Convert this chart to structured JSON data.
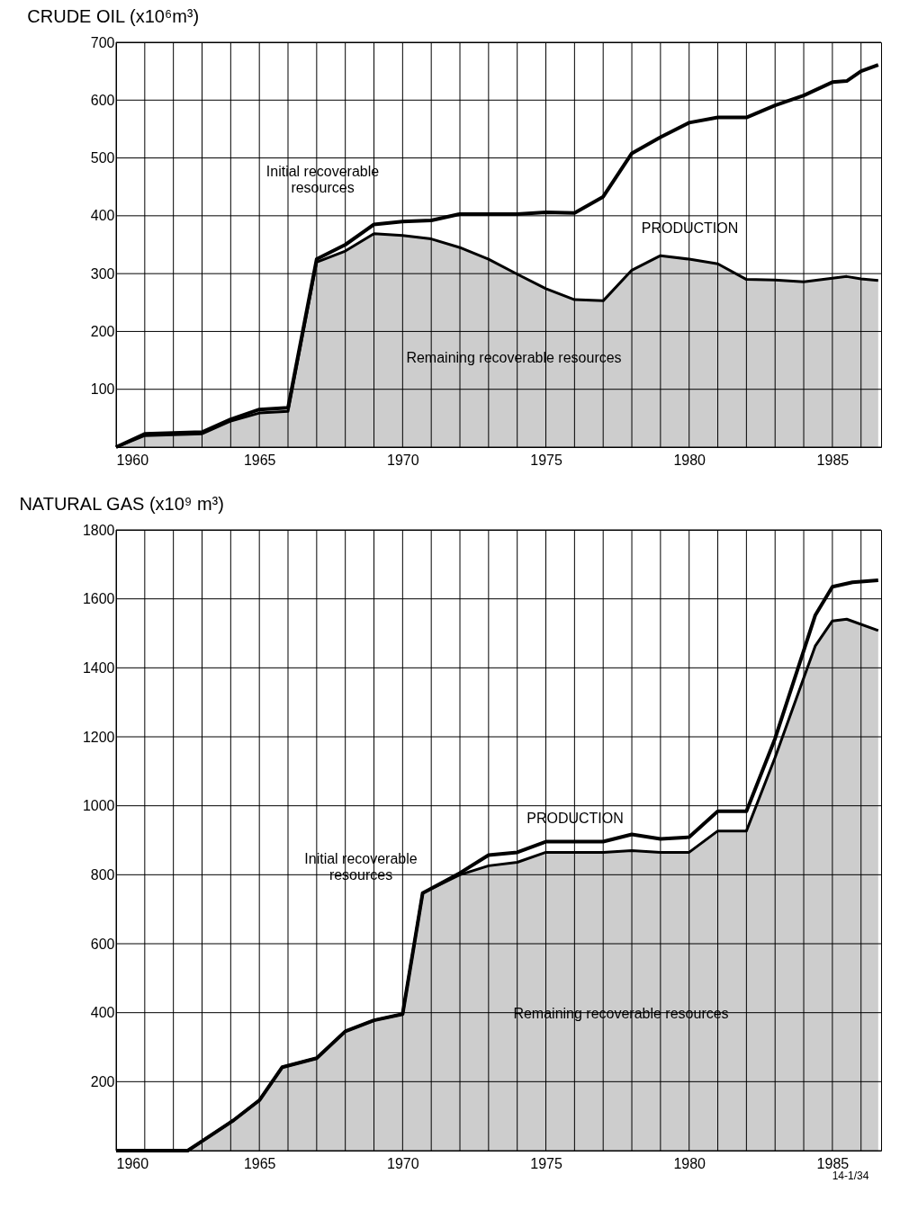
{
  "chart_data": [
    {
      "type": "line",
      "title": "CRUDE OIL (x10⁶m³)",
      "xlim": [
        1960,
        1986.7
      ],
      "ylim": [
        0,
        700
      ],
      "xticks": [
        1960,
        {
          "value": 1961,
          "label": null
        },
        {
          "value": 1962,
          "label": null
        },
        {
          "value": 1963,
          "label": null
        },
        {
          "value": 1964,
          "label": null
        },
        1965,
        {
          "value": 1966,
          "label": null
        },
        {
          "value": 1967,
          "label": null
        },
        {
          "value": 1968,
          "label": null
        },
        {
          "value": 1969,
          "label": null
        },
        1970,
        {
          "value": 1971,
          "label": null
        },
        {
          "value": 1972,
          "label": null
        },
        {
          "value": 1973,
          "label": null
        },
        {
          "value": 1974,
          "label": null
        },
        1975,
        {
          "value": 1976,
          "label": null
        },
        {
          "value": 1977,
          "label": null
        },
        {
          "value": 1978,
          "label": null
        },
        {
          "value": 1979,
          "label": null
        },
        1980,
        {
          "value": 1981,
          "label": null
        },
        {
          "value": 1982,
          "label": null
        },
        {
          "value": 1983,
          "label": null
        },
        {
          "value": 1984,
          "label": null
        },
        1985,
        {
          "value": 1986,
          "label": null
        }
      ],
      "yticks": [
        {
          "value": 0,
          "label": null
        },
        100,
        200,
        300,
        400,
        500,
        600,
        700
      ],
      "grid": true,
      "series": [
        {
          "type": "area",
          "color": "#c4c4c4",
          "x": [
            1960,
            1961,
            1963,
            1964,
            1965,
            1966,
            1967,
            1968,
            1969,
            1970,
            1971,
            1972,
            1973,
            1974,
            1975,
            1976,
            1977,
            1978,
            1979,
            1980,
            1981,
            1982,
            1983,
            1984,
            1985,
            1985.5,
            1986,
            1986.6
          ],
          "values": [
            0,
            20,
            23,
            45,
            59,
            62,
            320,
            339,
            369,
            366,
            360,
            345,
            325,
            299,
            274,
            255,
            253,
            306,
            331,
            325,
            317,
            290,
            289,
            286,
            292,
            295,
            291,
            288
          ]
        },
        {
          "color": "#000000",
          "x": [
            1960,
            1961,
            1963,
            1964,
            1965,
            1966,
            1967,
            1968,
            1969,
            1970,
            1971,
            1972,
            1973,
            1974,
            1975,
            1976,
            1977,
            1978,
            1979,
            1980,
            1981,
            1982,
            1983,
            1984,
            1985,
            1985.5,
            1986,
            1986.6
          ],
          "values": [
            0,
            23,
            26,
            48,
            65,
            68,
            325,
            350,
            385,
            390,
            392,
            403,
            403,
            403,
            406,
            405,
            433,
            508,
            536,
            561,
            570,
            570,
            591,
            608,
            631,
            633,
            650,
            661
          ]
        }
      ],
      "annotations": [
        "Initial recoverable\nresources",
        "PRODUCTION",
        "Remaining recoverable resources"
      ]
    },
    {
      "type": "line",
      "title": "NATURAL GAS (x10⁹ m³)",
      "xlim": [
        1960,
        1986.7
      ],
      "ylim": [
        0,
        1800
      ],
      "xticks": [
        1960,
        {
          "value": 1961,
          "label": null
        },
        {
          "value": 1962,
          "label": null
        },
        {
          "value": 1963,
          "label": null
        },
        {
          "value": 1964,
          "label": null
        },
        1965,
        {
          "value": 1966,
          "label": null
        },
        {
          "value": 1967,
          "label": null
        },
        {
          "value": 1968,
          "label": null
        },
        {
          "value": 1969,
          "label": null
        },
        1970,
        {
          "value": 1971,
          "label": null
        },
        {
          "value": 1972,
          "label": null
        },
        {
          "value": 1973,
          "label": null
        },
        {
          "value": 1974,
          "label": null
        },
        1975,
        {
          "value": 1976,
          "label": null
        },
        {
          "value": 1977,
          "label": null
        },
        {
          "value": 1978,
          "label": null
        },
        {
          "value": 1979,
          "label": null
        },
        1980,
        {
          "value": 1981,
          "label": null
        },
        {
          "value": 1982,
          "label": null
        },
        {
          "value": 1983,
          "label": null
        },
        {
          "value": 1984,
          "label": null
        },
        1985,
        {
          "value": 1986,
          "label": null
        }
      ],
      "yticks": [
        {
          "value": 0,
          "label": null
        },
        200,
        400,
        600,
        800,
        1000,
        1200,
        1400,
        1600,
        1800
      ],
      "grid": true,
      "series": [
        {
          "type": "area",
          "color": "#c4c4c4",
          "x": [
            1960,
            1962.5,
            1964.1,
            1965,
            1965.8,
            1967,
            1968,
            1969,
            1970,
            1970.7,
            1972,
            1973,
            1974,
            1975,
            1976,
            1977,
            1978,
            1979,
            1980,
            1981,
            1982,
            1983,
            1984.4,
            1985,
            1985.5,
            1986.6
          ],
          "values": [
            0,
            0,
            88,
            146,
            242,
            268,
            346,
            378,
            396,
            747,
            800,
            826,
            836,
            865,
            865,
            865,
            870,
            865,
            865,
            927,
            927,
            1140,
            1463,
            1536,
            1541,
            1508
          ]
        },
        {
          "color": "#000000",
          "x": [
            1960,
            1962.5,
            1964.1,
            1965,
            1965.8,
            1967,
            1968,
            1969,
            1970,
            1970.7,
            1972,
            1973,
            1974,
            1975,
            1976,
            1977,
            1978,
            1979,
            1980,
            1981,
            1982,
            1983,
            1984.4,
            1985,
            1985.7,
            1986.6
          ],
          "values": [
            0,
            0,
            88,
            146,
            242,
            268,
            346,
            378,
            396,
            747,
            805,
            857,
            865,
            896,
            896,
            896,
            917,
            904,
            909,
            984,
            984,
            1195,
            1552,
            1635,
            1648,
            1654
          ]
        }
      ],
      "annotations": [
        "Initial recoverable\nresources",
        "PRODUCTION",
        "Remaining recoverable resources",
        "14-1/34"
      ]
    }
  ]
}
